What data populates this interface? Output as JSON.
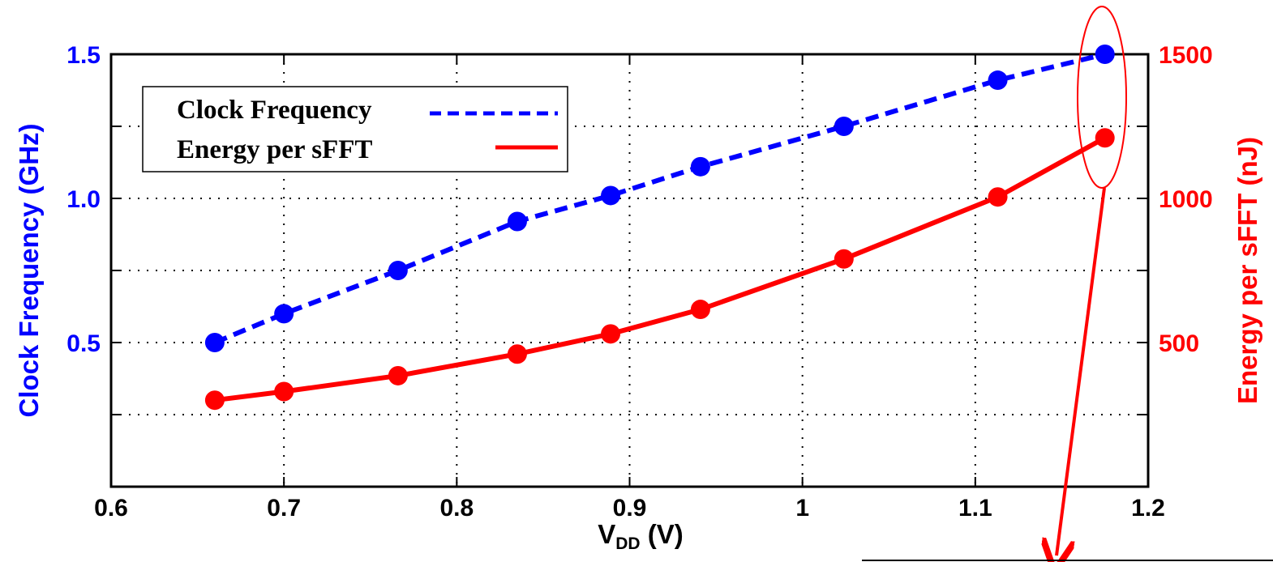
{
  "chart_data": {
    "type": "line",
    "x": [
      0.66,
      0.7,
      0.766,
      0.835,
      0.889,
      0.941,
      1.024,
      1.113,
      1.175
    ],
    "series": [
      {
        "name": "Clock Frequency",
        "axis": "left",
        "color": "#0000ff",
        "line_style": "dashed",
        "values": [
          0.5,
          0.6,
          0.75,
          0.92,
          1.01,
          1.11,
          1.25,
          1.41,
          1.5
        ]
      },
      {
        "name": "Energy per sFFT",
        "axis": "right",
        "color": "#ff0000",
        "line_style": "solid",
        "values": [
          300,
          330,
          385,
          460,
          530,
          615,
          790,
          1005,
          1210
        ]
      }
    ],
    "xlabel_main": "V",
    "xlabel_sub": "DD",
    "xlabel_unit": " (V)",
    "ylabel_left": "Clock Frequency (GHz)",
    "ylabel_right": "Energy per sFFT (nJ)",
    "xlim": [
      0.6,
      1.2
    ],
    "ylim_left": [
      0,
      1.5
    ],
    "ylim_right": [
      0,
      1500
    ],
    "x_ticks": [
      "0.6",
      "0.7",
      "0.8",
      "0.9",
      "1",
      "1.1",
      "1.2"
    ],
    "left_ticks": [
      "0.5",
      "1.0",
      "1.5"
    ],
    "right_ticks": [
      "500",
      "1000",
      "1500"
    ],
    "grid": true,
    "legend_position": "top-left",
    "annotation": "ellipse highlighting the points at 1.175 V with an arrow pointing down"
  }
}
